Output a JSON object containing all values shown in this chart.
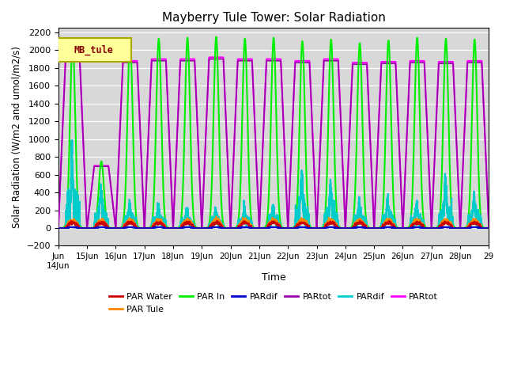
{
  "title": "Mayberry Tule Tower: Solar Radiation",
  "ylabel": "Solar Radiation (W/m2 and umol/m2/s)",
  "xlabel": "Time",
  "ylim": [
    -200,
    2250
  ],
  "yticks": [
    -200,
    0,
    200,
    400,
    600,
    800,
    1000,
    1200,
    1400,
    1600,
    1800,
    2000,
    2200
  ],
  "num_days": 15,
  "start_day": 14,
  "bg_color": "#d8d8d8",
  "series": [
    {
      "name": "PAR Water",
      "color": "#cc0000",
      "lw": 1.2
    },
    {
      "name": "PAR Tule",
      "color": "#ff8800",
      "lw": 1.2
    },
    {
      "name": "PAR In",
      "color": "#00ee00",
      "lw": 1.5
    },
    {
      "name": "PARdif",
      "color": "#0000cc",
      "lw": 1.2
    },
    {
      "name": "PARtot",
      "color": "#9900aa",
      "lw": 1.2
    },
    {
      "name": "PARdif",
      "color": "#00cccc",
      "lw": 1.5
    },
    {
      "name": "PARtot",
      "color": "#ff00ff",
      "lw": 1.5
    }
  ],
  "mb_box_fc": "#ffff99",
  "mb_box_ec": "#aaaa00",
  "mb_text_color": "#880000"
}
